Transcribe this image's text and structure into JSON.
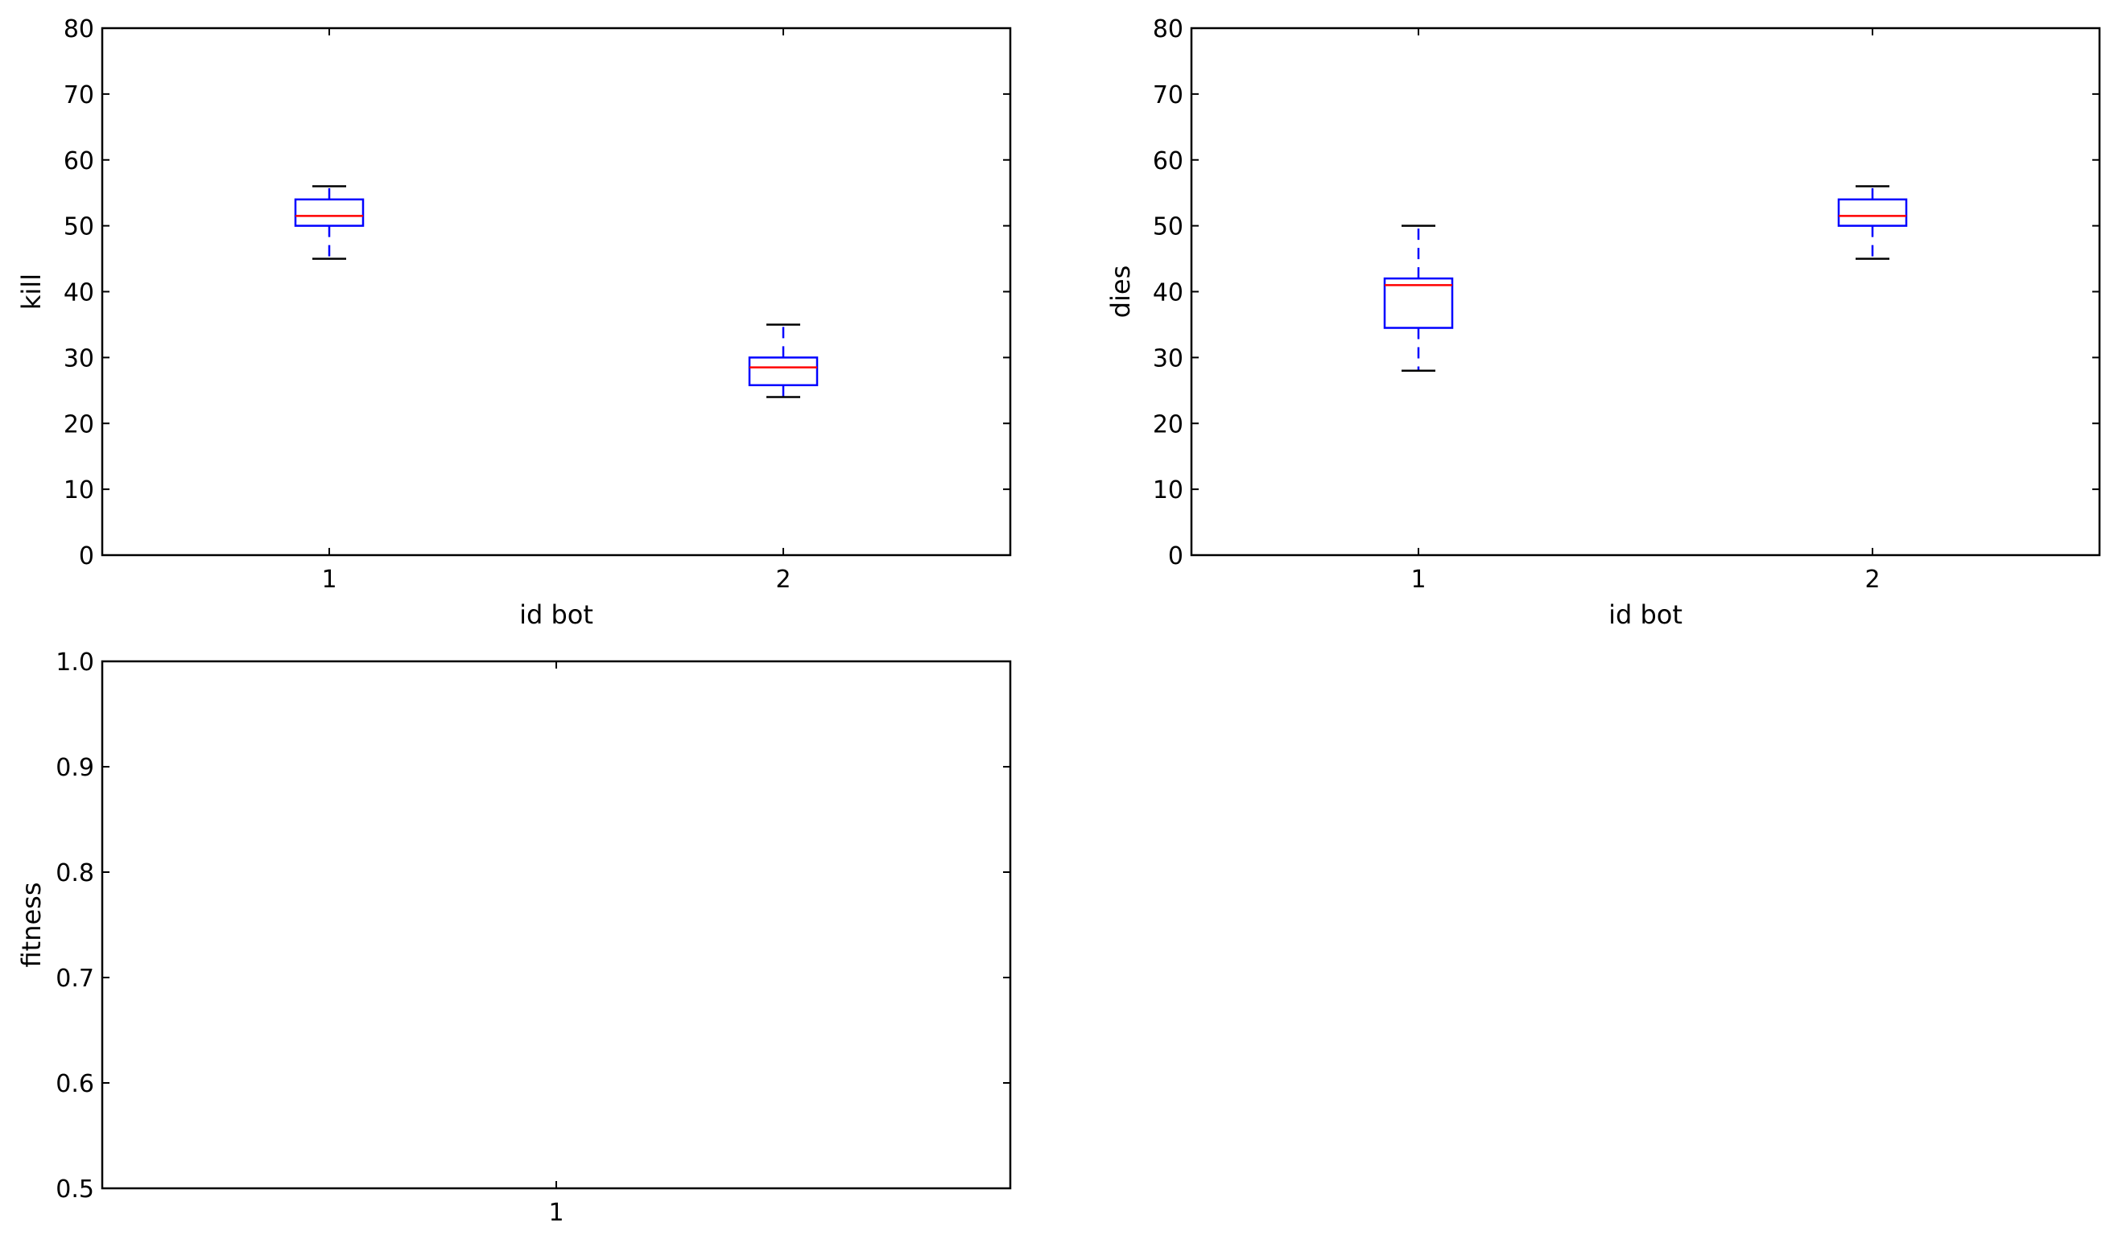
{
  "colors": {
    "box": "#0000ff",
    "median": "#ff0000",
    "whisker": "#0000ff",
    "cap": "#000000",
    "axes": "#000000",
    "background": "#ffffff"
  },
  "chart_data": [
    {
      "type": "boxplot",
      "xlabel": "id bot",
      "ylabel": "kill",
      "categories": [
        "1",
        "2"
      ],
      "ylim": [
        0,
        80
      ],
      "yticks": [
        0,
        10,
        20,
        30,
        40,
        50,
        60,
        70,
        80
      ],
      "ytick_labels": [
        "0",
        "10",
        "20",
        "30",
        "40",
        "50",
        "60",
        "70",
        "80"
      ],
      "grid": false,
      "boxes": [
        {
          "category": "1",
          "whisker_low": 45,
          "q1": 50,
          "median": 51.5,
          "q3": 54,
          "whisker_high": 56
        },
        {
          "category": "2",
          "whisker_low": 24,
          "q1": 25.8,
          "median": 28.5,
          "q3": 30,
          "whisker_high": 35
        }
      ]
    },
    {
      "type": "boxplot",
      "xlabel": "id bot",
      "ylabel": "dies",
      "categories": [
        "1",
        "2"
      ],
      "ylim": [
        0,
        80
      ],
      "yticks": [
        0,
        10,
        20,
        30,
        40,
        50,
        60,
        70,
        80
      ],
      "ytick_labels": [
        "0",
        "10",
        "20",
        "30",
        "40",
        "50",
        "60",
        "70",
        "80"
      ],
      "grid": false,
      "boxes": [
        {
          "category": "1",
          "whisker_low": 28,
          "q1": 34.5,
          "median": 41,
          "q3": 42,
          "whisker_high": 50
        },
        {
          "category": "2",
          "whisker_low": 45,
          "q1": 50,
          "median": 51.5,
          "q3": 54,
          "whisker_high": 56
        }
      ]
    },
    {
      "type": "boxplot",
      "xlabel": "",
      "ylabel": "fitness",
      "categories": [
        "1"
      ],
      "ylim": [
        0.5,
        1.0
      ],
      "yticks": [
        0.5,
        0.6,
        0.7,
        0.8,
        0.9,
        1.0
      ],
      "ytick_labels": [
        "0.5",
        "0.6",
        "0.7",
        "0.8",
        "0.9",
        "1.0"
      ],
      "grid": false,
      "boxes": []
    }
  ]
}
